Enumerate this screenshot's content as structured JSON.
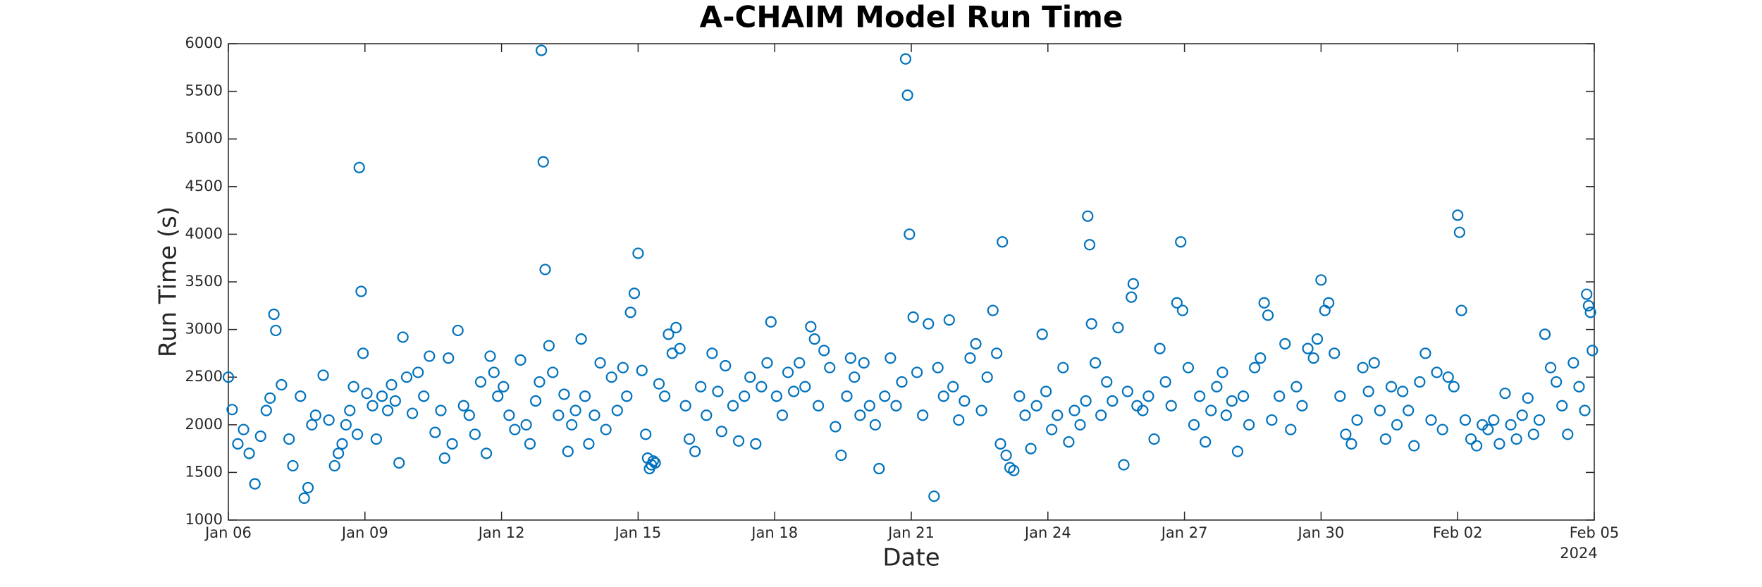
{
  "chart_data": {
    "type": "scatter",
    "title": "A-CHAIM Model Run Time",
    "x_label": "Date",
    "y_label": "Run Time (s)",
    "x_axis_year_label": "2024",
    "marker_color": "#0072bd",
    "marker": "open-circle",
    "grid": false,
    "xlim": [
      "2024-01-06T00:00",
      "2024-02-05T00:00"
    ],
    "ylim": [
      1000,
      6000
    ],
    "yticks": [
      1000,
      1500,
      2000,
      2500,
      3000,
      3500,
      4000,
      4500,
      5000,
      5500,
      6000
    ],
    "xticks": [
      {
        "value": "2024-01-06T00:00",
        "label": "Jan 06"
      },
      {
        "value": "2024-01-09T00:00",
        "label": "Jan 09"
      },
      {
        "value": "2024-01-12T00:00",
        "label": "Jan 12"
      },
      {
        "value": "2024-01-15T00:00",
        "label": "Jan 15"
      },
      {
        "value": "2024-01-18T00:00",
        "label": "Jan 18"
      },
      {
        "value": "2024-01-21T00:00",
        "label": "Jan 21"
      },
      {
        "value": "2024-01-24T00:00",
        "label": "Jan 24"
      },
      {
        "value": "2024-01-27T00:00",
        "label": "Jan 27"
      },
      {
        "value": "2024-01-30T00:00",
        "label": "Jan 30"
      },
      {
        "value": "2024-02-02T00:00",
        "label": "Feb 02"
      },
      {
        "value": "2024-02-05T00:00",
        "label": "Feb 05"
      }
    ],
    "x": [
      "2024-01-06T00:00",
      "2024-01-06T02:00",
      "2024-01-06T05:00",
      "2024-01-06T08:00",
      "2024-01-06T11:00",
      "2024-01-06T14:00",
      "2024-01-06T17:00",
      "2024-01-06T20:00",
      "2024-01-06T22:00",
      "2024-01-07T00:00",
      "2024-01-07T01:00",
      "2024-01-07T04:00",
      "2024-01-07T08:00",
      "2024-01-07T10:00",
      "2024-01-07T14:00",
      "2024-01-07T16:00",
      "2024-01-07T18:00",
      "2024-01-07T20:00",
      "2024-01-07T22:00",
      "2024-01-08T02:00",
      "2024-01-08T05:00",
      "2024-01-08T08:00",
      "2024-01-08T10:00",
      "2024-01-08T12:00",
      "2024-01-08T14:00",
      "2024-01-08T16:00",
      "2024-01-08T18:00",
      "2024-01-08T20:00",
      "2024-01-08T21:00",
      "2024-01-08T22:00",
      "2024-01-08T23:00",
      "2024-01-09T01:00",
      "2024-01-09T04:00",
      "2024-01-09T06:00",
      "2024-01-09T09:00",
      "2024-01-09T12:00",
      "2024-01-09T14:00",
      "2024-01-09T16:00",
      "2024-01-09T18:00",
      "2024-01-09T20:00",
      "2024-01-09T22:00",
      "2024-01-10T01:00",
      "2024-01-10T04:00",
      "2024-01-10T07:00",
      "2024-01-10T10:00",
      "2024-01-10T13:00",
      "2024-01-10T16:00",
      "2024-01-10T18:00",
      "2024-01-10T20:00",
      "2024-01-10T22:00",
      "2024-01-11T01:00",
      "2024-01-11T04:00",
      "2024-01-11T07:00",
      "2024-01-11T10:00",
      "2024-01-11T13:00",
      "2024-01-11T16:00",
      "2024-01-11T18:00",
      "2024-01-11T20:00",
      "2024-01-11T22:00",
      "2024-01-12T01:00",
      "2024-01-12T04:00",
      "2024-01-12T07:00",
      "2024-01-12T10:00",
      "2024-01-12T13:00",
      "2024-01-12T15:00",
      "2024-01-12T18:00",
      "2024-01-12T20:00",
      "2024-01-12T21:00",
      "2024-01-12T22:00",
      "2024-01-12T23:00",
      "2024-01-13T01:00",
      "2024-01-13T03:00",
      "2024-01-13T06:00",
      "2024-01-13T09:00",
      "2024-01-13T11:00",
      "2024-01-13T13:00",
      "2024-01-13T15:00",
      "2024-01-13T18:00",
      "2024-01-13T20:00",
      "2024-01-13T22:00",
      "2024-01-14T01:00",
      "2024-01-14T04:00",
      "2024-01-14T07:00",
      "2024-01-14T10:00",
      "2024-01-14T13:00",
      "2024-01-14T16:00",
      "2024-01-14T18:00",
      "2024-01-14T20:00",
      "2024-01-14T22:00",
      "2024-01-15T00:00",
      "2024-01-15T02:00",
      "2024-01-15T04:00",
      "2024-01-15T05:00",
      "2024-01-15T06:00",
      "2024-01-15T07:00",
      "2024-01-15T08:00",
      "2024-01-15T09:00",
      "2024-01-15T11:00",
      "2024-01-15T14:00",
      "2024-01-15T16:00",
      "2024-01-15T18:00",
      "2024-01-15T20:00",
      "2024-01-15T22:00",
      "2024-01-16T01:00",
      "2024-01-16T03:00",
      "2024-01-16T06:00",
      "2024-01-16T09:00",
      "2024-01-16T12:00",
      "2024-01-16T15:00",
      "2024-01-16T18:00",
      "2024-01-16T20:00",
      "2024-01-16T22:00",
      "2024-01-17T02:00",
      "2024-01-17T05:00",
      "2024-01-17T08:00",
      "2024-01-17T11:00",
      "2024-01-17T14:00",
      "2024-01-17T17:00",
      "2024-01-17T20:00",
      "2024-01-17T22:00",
      "2024-01-18T01:00",
      "2024-01-18T04:00",
      "2024-01-18T07:00",
      "2024-01-18T10:00",
      "2024-01-18T13:00",
      "2024-01-18T16:00",
      "2024-01-18T19:00",
      "2024-01-18T21:00",
      "2024-01-18T23:00",
      "2024-01-19T02:00",
      "2024-01-19T05:00",
      "2024-01-19T08:00",
      "2024-01-19T11:00",
      "2024-01-19T14:00",
      "2024-01-19T16:00",
      "2024-01-19T18:00",
      "2024-01-19T21:00",
      "2024-01-19T23:00",
      "2024-01-20T02:00",
      "2024-01-20T05:00",
      "2024-01-20T07:00",
      "2024-01-20T10:00",
      "2024-01-20T13:00",
      "2024-01-20T16:00",
      "2024-01-20T19:00",
      "2024-01-20T21:00",
      "2024-01-20T22:00",
      "2024-01-20T23:00",
      "2024-01-21T01:00",
      "2024-01-21T03:00",
      "2024-01-21T06:00",
      "2024-01-21T09:00",
      "2024-01-21T12:00",
      "2024-01-21T14:00",
      "2024-01-21T17:00",
      "2024-01-21T20:00",
      "2024-01-21T22:00",
      "2024-01-22T01:00",
      "2024-01-22T04:00",
      "2024-01-22T07:00",
      "2024-01-22T10:00",
      "2024-01-22T13:00",
      "2024-01-22T16:00",
      "2024-01-22T19:00",
      "2024-01-22T21:00",
      "2024-01-22T23:00",
      "2024-01-23T00:00",
      "2024-01-23T02:00",
      "2024-01-23T04:00",
      "2024-01-23T06:00",
      "2024-01-23T09:00",
      "2024-01-23T12:00",
      "2024-01-23T15:00",
      "2024-01-23T18:00",
      "2024-01-23T21:00",
      "2024-01-23T23:00",
      "2024-01-24T02:00",
      "2024-01-24T05:00",
      "2024-01-24T08:00",
      "2024-01-24T11:00",
      "2024-01-24T14:00",
      "2024-01-24T17:00",
      "2024-01-24T20:00",
      "2024-01-24T21:00",
      "2024-01-24T22:00",
      "2024-01-24T23:00",
      "2024-01-25T01:00",
      "2024-01-25T04:00",
      "2024-01-25T07:00",
      "2024-01-25T10:00",
      "2024-01-25T13:00",
      "2024-01-25T16:00",
      "2024-01-25T18:00",
      "2024-01-25T20:00",
      "2024-01-25T21:00",
      "2024-01-25T23:00",
      "2024-01-26T02:00",
      "2024-01-26T05:00",
      "2024-01-26T08:00",
      "2024-01-26T11:00",
      "2024-01-26T14:00",
      "2024-01-26T17:00",
      "2024-01-26T20:00",
      "2024-01-26T22:00",
      "2024-01-26T23:00",
      "2024-01-27T02:00",
      "2024-01-27T05:00",
      "2024-01-27T08:00",
      "2024-01-27T11:00",
      "2024-01-27T14:00",
      "2024-01-27T17:00",
      "2024-01-27T20:00",
      "2024-01-27T22:00",
      "2024-01-28T01:00",
      "2024-01-28T04:00",
      "2024-01-28T07:00",
      "2024-01-28T10:00",
      "2024-01-28T13:00",
      "2024-01-28T16:00",
      "2024-01-28T18:00",
      "2024-01-28T20:00",
      "2024-01-28T22:00",
      "2024-01-29T02:00",
      "2024-01-29T05:00",
      "2024-01-29T08:00",
      "2024-01-29T11:00",
      "2024-01-29T14:00",
      "2024-01-29T17:00",
      "2024-01-29T20:00",
      "2024-01-29T22:00",
      "2024-01-30T00:00",
      "2024-01-30T02:00",
      "2024-01-30T04:00",
      "2024-01-30T07:00",
      "2024-01-30T10:00",
      "2024-01-30T13:00",
      "2024-01-30T16:00",
      "2024-01-30T19:00",
      "2024-01-30T22:00",
      "2024-01-31T01:00",
      "2024-01-31T04:00",
      "2024-01-31T07:00",
      "2024-01-31T10:00",
      "2024-01-31T13:00",
      "2024-01-31T16:00",
      "2024-01-31T19:00",
      "2024-01-31T22:00",
      "2024-02-01T01:00",
      "2024-02-01T04:00",
      "2024-02-01T07:00",
      "2024-02-01T10:00",
      "2024-02-01T13:00",
      "2024-02-01T16:00",
      "2024-02-01T19:00",
      "2024-02-01T22:00",
      "2024-02-02T00:00",
      "2024-02-02T01:00",
      "2024-02-02T02:00",
      "2024-02-02T04:00",
      "2024-02-02T07:00",
      "2024-02-02T10:00",
      "2024-02-02T13:00",
      "2024-02-02T16:00",
      "2024-02-02T19:00",
      "2024-02-02T22:00",
      "2024-02-03T01:00",
      "2024-02-03T04:00",
      "2024-02-03T07:00",
      "2024-02-03T10:00",
      "2024-02-03T13:00",
      "2024-02-03T16:00",
      "2024-02-03T19:00",
      "2024-02-03T22:00",
      "2024-02-04T01:00",
      "2024-02-04T04:00",
      "2024-02-04T07:00",
      "2024-02-04T10:00",
      "2024-02-04T13:00",
      "2024-02-04T16:00",
      "2024-02-04T19:00",
      "2024-02-04T20:00",
      "2024-02-04T21:00",
      "2024-02-04T22:00",
      "2024-02-04T23:00"
    ],
    "values": [
      2500,
      2160,
      1800,
      1950,
      1700,
      1380,
      1880,
      2150,
      2280,
      3160,
      2990,
      2420,
      1850,
      1570,
      2300,
      1230,
      1340,
      2000,
      2100,
      2520,
      2050,
      1570,
      1700,
      1800,
      2000,
      2150,
      2400,
      1900,
      4700,
      3400,
      2750,
      2330,
      2200,
      1850,
      2300,
      2150,
      2420,
      2250,
      1600,
      2920,
      2500,
      2120,
      2550,
      2300,
      2720,
      1920,
      2150,
      1650,
      2700,
      1800,
      2990,
      2200,
      2100,
      1900,
      2450,
      1700,
      2720,
      2550,
      2300,
      2400,
      2100,
      1950,
      2680,
      2000,
      1800,
      2250,
      2450,
      5930,
      4760,
      3630,
      2830,
      2550,
      2100,
      2320,
      1720,
      2000,
      2150,
      2900,
      2300,
      1800,
      2100,
      2650,
      1950,
      2500,
      2150,
      2600,
      2300,
      3180,
      3380,
      3800,
      2570,
      1900,
      1650,
      1540,
      1580,
      1620,
      1600,
      2430,
      2300,
      2950,
      2750,
      3020,
      2800,
      2200,
      1850,
      1720,
      2400,
      2100,
      2750,
      2350,
      1930,
      2620,
      2200,
      1830,
      2300,
      2500,
      1800,
      2400,
      2650,
      3080,
      2300,
      2100,
      2550,
      2350,
      2650,
      2400,
      3030,
      2900,
      2200,
      2780,
      2600,
      1980,
      1680,
      2300,
      2700,
      2500,
      2100,
      2650,
      2200,
      2000,
      1540,
      2300,
      2700,
      2200,
      2450,
      5840,
      5460,
      4000,
      3130,
      2550,
      2100,
      3060,
      1250,
      2600,
      2300,
      3100,
      2400,
      2050,
      2250,
      2700,
      2850,
      2150,
      2500,
      3200,
      2750,
      1800,
      3920,
      1680,
      1550,
      1520,
      2300,
      2100,
      1750,
      2200,
      2950,
      2350,
      1950,
      2100,
      2600,
      1820,
      2150,
      2000,
      2250,
      4190,
      3890,
      3060,
      2650,
      2100,
      2450,
      2250,
      3020,
      1580,
      2350,
      3340,
      3480,
      2200,
      2150,
      2300,
      1850,
      2800,
      2450,
      2200,
      3280,
      3920,
      3200,
      2600,
      2000,
      2300,
      1820,
      2150,
      2400,
      2550,
      2100,
      2250,
      1720,
      2300,
      2000,
      2600,
      2700,
      3280,
      3150,
      2050,
      2300,
      2850,
      1950,
      2400,
      2200,
      2800,
      2700,
      2900,
      3520,
      3200,
      3280,
      2750,
      2300,
      1900,
      1800,
      2050,
      2600,
      2350,
      2650,
      2150,
      1850,
      2400,
      2000,
      2350,
      2150,
      1780,
      2450,
      2750,
      2050,
      2550,
      1950,
      2500,
      2400,
      4200,
      4020,
      3200,
      2050,
      1850,
      1780,
      2000,
      1950,
      2050,
      1800,
      2330,
      2000,
      1850,
      2100,
      2280,
      1900,
      2050,
      2950,
      2600,
      2450,
      2200,
      1900,
      2650,
      2400,
      2150,
      3370,
      3250,
      3180,
      2780
    ]
  }
}
